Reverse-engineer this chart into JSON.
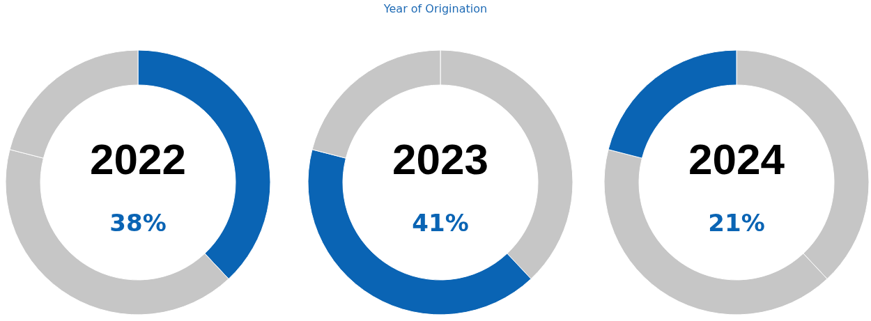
{
  "chart_data": [
    {
      "type": "donut",
      "title": "2022",
      "subtitle": "38%",
      "annotations": [
        "Year of Origination"
      ],
      "categories": [
        null,
        null,
        null
      ],
      "values": [
        38,
        41,
        21
      ],
      "colors": [
        "#0a64b4",
        "#c6c6c6",
        "#c6c6c6"
      ]
    },
    {
      "type": "donut",
      "title": "2023",
      "subtitle": "41%",
      "categories": [
        null,
        null,
        null
      ],
      "values": [
        38,
        41,
        21
      ],
      "colors": [
        "#c6c6c6",
        "#0a64b4",
        "#c6c6c6"
      ]
    },
    {
      "type": "donut",
      "title": "2024",
      "subtitle": "21%",
      "categories": [
        null,
        null,
        null
      ],
      "values": [
        38,
        41,
        21
      ],
      "colors": [
        "#c6c6c6",
        "#c6c6c6",
        "#0a64b4"
      ]
    }
  ]
}
